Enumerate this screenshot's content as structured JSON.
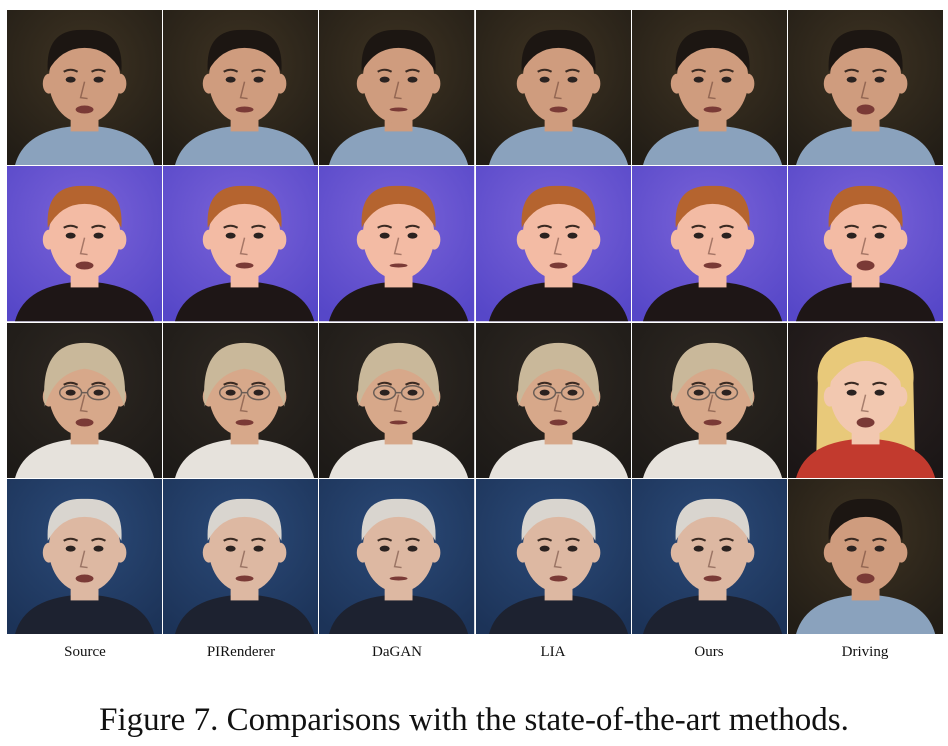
{
  "figure": {
    "columns": [
      "Source",
      "PIRenderer",
      "DaGAN",
      "LIA",
      "Ours",
      "Driving"
    ],
    "caption": "Figure 7. Comparisons with the state-of-the-art methods."
  },
  "rows": [
    {
      "bg": "#221d16",
      "bg2": "#3e3322",
      "skin": "#cf9c7e",
      "hair": "#1c1612",
      "shirt": "#8aa2bd",
      "hair_style": "short",
      "glasses": false
    },
    {
      "bg": "#5647c8",
      "bg2": "#7a63d8",
      "skin": "#f3bba4",
      "hair": "#b5642f",
      "shirt": "#1e1616",
      "hair_style": "short",
      "glasses": false
    },
    {
      "bg": "#1d1a17",
      "bg2": "#2e2822",
      "skin": "#d7a88a",
      "hair": "#c9b89a",
      "shirt": "#e6e2dc",
      "hair_style": "bob",
      "glasses": true
    },
    {
      "bg": "#1c3358",
      "bg2": "#2b4a78",
      "skin": "#ddb8a2",
      "hair": "#d9d5cf",
      "shirt": "#1d2230",
      "hair_style": "short",
      "glasses": false
    }
  ],
  "driving_faces": [
    {
      "bg": "#221d16",
      "bg2": "#3e3322",
      "skin": "#cf9c7e",
      "hair": "#1c1612",
      "shirt": "#8aa2bd",
      "hair_style": "short",
      "glasses": false
    },
    {
      "bg": "#5647c8",
      "bg2": "#7a63d8",
      "skin": "#f3bba4",
      "hair": "#b5642f",
      "shirt": "#1e1616",
      "hair_style": "short",
      "glasses": false
    },
    {
      "bg": "#1b1616",
      "bg2": "#2c2322",
      "skin": "#f2c8b0",
      "hair": "#e8c97a",
      "shirt": "#c23a2e",
      "hair_style": "long",
      "glasses": false
    },
    {
      "bg": "#221d16",
      "bg2": "#3e3322",
      "skin": "#cf9c7e",
      "hair": "#1c1612",
      "shirt": "#8aa2bd",
      "hair_style": "short",
      "glasses": false
    }
  ]
}
